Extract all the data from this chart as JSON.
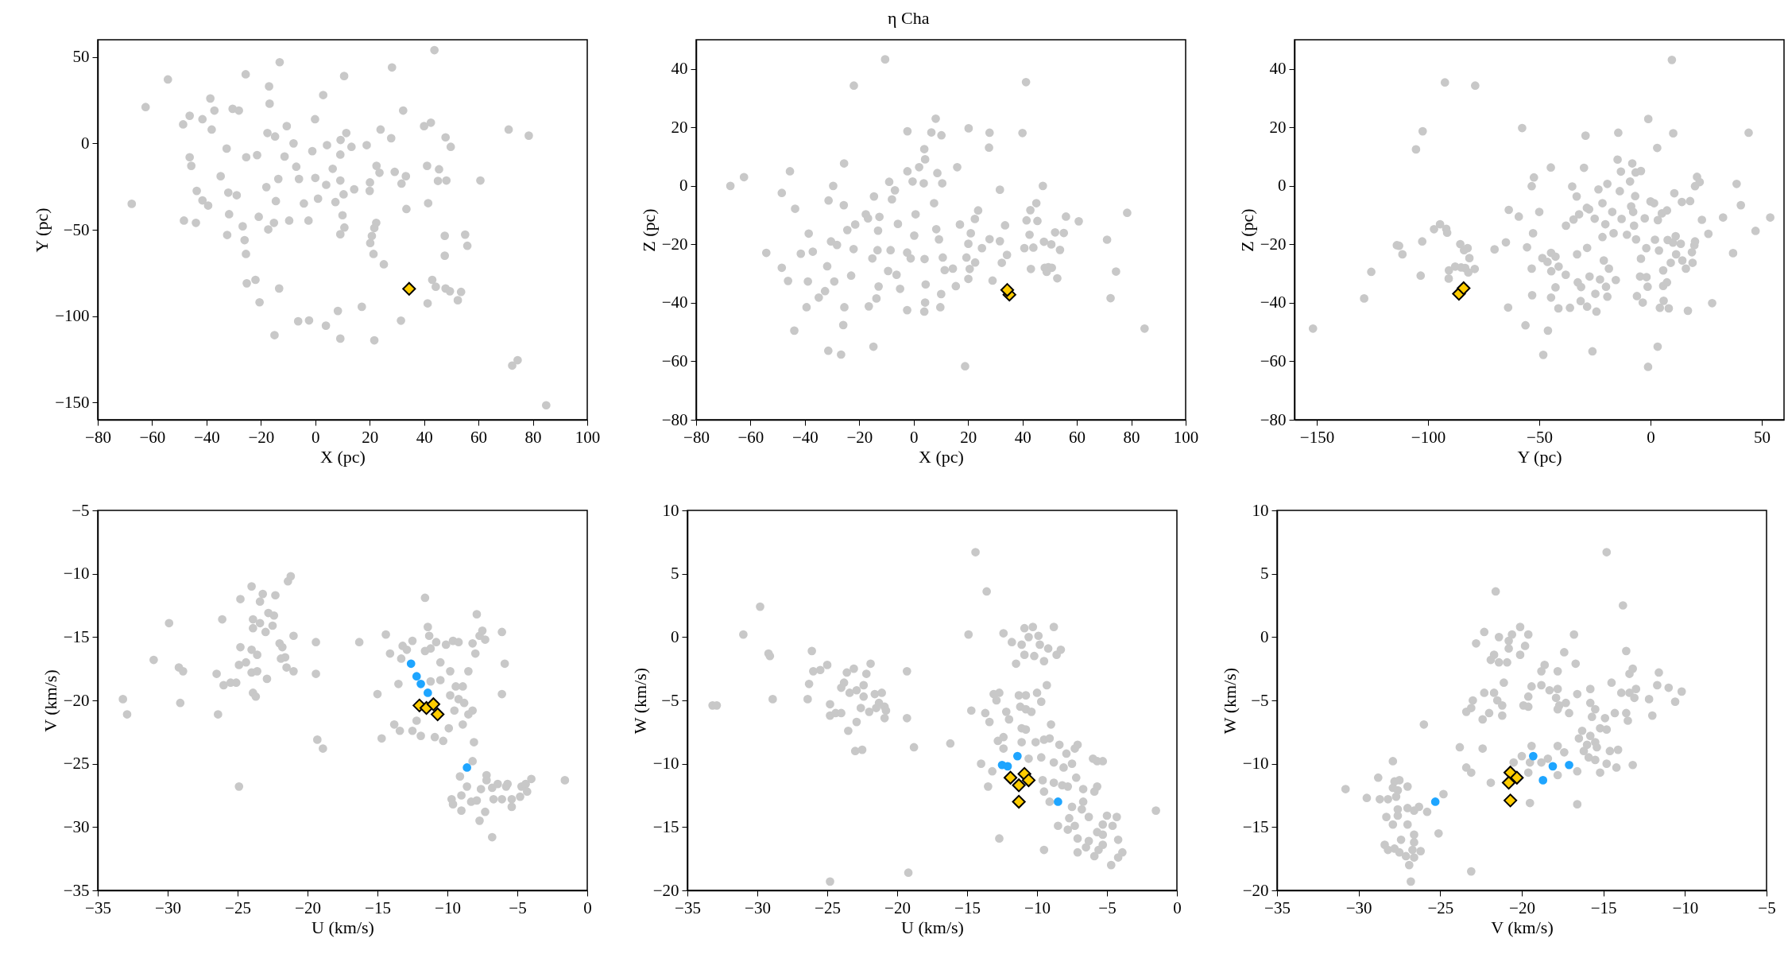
{
  "chart_data": [
    {
      "type": "scatter",
      "marker": "circle",
      "xlabel": "X (pc)",
      "ylabel": "Y (pc)",
      "xlim": [
        -80,
        100
      ],
      "ylim": [
        -160,
        60
      ],
      "xticks": [
        -80,
        -60,
        -40,
        -20,
        0,
        20,
        40,
        60,
        80,
        100
      ],
      "yticks": [
        -150,
        -100,
        -50,
        0,
        50
      ],
      "series": [
        {
          "color": "#c8c8c8",
          "x": [
            -67.5,
            -62.4,
            -54.2,
            -48.6,
            -46.2,
            -41.5,
            -38.6,
            -38.1,
            -37.1,
            -30.4,
            -28.1,
            -25.6,
            -16.8,
            -17,
            -13.1,
            2.9,
            10.6,
            28.2,
            43.8,
            32.3,
            42.5,
            71.1,
            78.5,
            49.8,
            47.9,
            40,
            24,
            27.9,
            18.9,
            13.3,
            9.3,
            11.4,
            4.3,
            -1.1,
            -0.1,
            -8,
            -10.5,
            -17.6,
            -14.8,
            -32.6,
            -46.2,
            -45.6,
            -34.8,
            -43.6,
            -41.5,
            -39.4,
            -32,
            -28.9,
            -31.7,
            -48.3,
            -43.9,
            -26.7,
            -32.4,
            -26,
            -25.5,
            -25.2,
            -22,
            -13.3,
            -20.5,
            -15,
            -6.3,
            -2.3,
            3.9,
            9.2,
            8.3,
            17.1,
            21.7,
            31.5,
            41.3,
            43,
            44.3,
            47.9,
            49.5,
            52.4,
            53.6,
            47.6,
            47.6,
            55.1,
            55.9,
            25.2,
            21.4,
            20.2,
            20.8,
            21.7,
            22.4,
            10,
            10.7,
            9.2,
            -2.5,
            -9.6,
            -15.2,
            -17.3,
            -20.8,
            1,
            -6,
            -7,
            -13.6,
            -18,
            -14.5,
            -4.2,
            7.4,
            10.4,
            14.3,
            20,
            20.1,
            22.5,
            23.6,
            29.2,
            31.7,
            33.3,
            33.5,
            41.5,
            41.1,
            45.5,
            45.1,
            48.2,
            60.7,
            72.4,
            74.4,
            84.9,
            6.4,
            9.2,
            9.2,
            0,
            4,
            -11.3,
            -21.4,
            -25.4
          ],
          "values": [
            -35,
            21,
            37,
            11,
            16,
            14,
            26,
            8,
            19,
            20,
            19,
            40,
            23,
            33,
            47,
            28,
            39,
            44,
            54,
            19,
            12,
            8,
            4.5,
            -2,
            3.5,
            10,
            8,
            3,
            -1,
            -2,
            2,
            6,
            -1,
            -4.5,
            14,
            0,
            10,
            6,
            4,
            -3,
            -8,
            -13,
            -19,
            -27.5,
            -33,
            -36,
            -28.5,
            -30,
            -41,
            -44.7,
            -46,
            -48,
            -53,
            -56,
            -64,
            -81,
            -79,
            -84,
            -92,
            -111,
            -103,
            -102.5,
            -105.5,
            -113,
            -97,
            -94.6,
            -114,
            -102.6,
            -92.6,
            -79,
            -83,
            -84,
            -85.6,
            -90.8,
            -86,
            -65,
            -53.5,
            -52.8,
            -59.3,
            -70,
            -64,
            -57.7,
            -53.6,
            -49,
            -46,
            -41.6,
            -48.7,
            -52.6,
            -44.7,
            -44.7,
            -46,
            -49.8,
            -42.5,
            -32,
            -20.6,
            -13.5,
            -20.6,
            -25.3,
            -33.4,
            -34.8,
            -34,
            -29.5,
            -26.6,
            -27.5,
            -22.6,
            -13,
            -17,
            -16.5,
            -23.3,
            -19,
            -38,
            -34.6,
            -13,
            -15,
            -21.7,
            -21.5,
            -21.5,
            -128.6,
            -125.5,
            -151.6,
            -14.7,
            -21.5,
            -6.5,
            -20,
            -24,
            -7.6,
            -6.8,
            -8
          ]
        },
        {
          "color": "#ffcc00",
          "marker": "diamond",
          "x": [
            34.5
          ],
          "values": [
            -84.2
          ]
        }
      ]
    },
    {
      "type": "scatter",
      "marker": "circle",
      "title": "η Cha",
      "xlabel": "X (pc)",
      "ylabel": "Z (pc)",
      "xlim": [
        -80,
        100
      ],
      "ylim": [
        -80,
        50
      ],
      "xticks": [
        -80,
        -60,
        -40,
        -20,
        0,
        20,
        40,
        60,
        80,
        100
      ],
      "yticks": [
        -80,
        -60,
        -40,
        -20,
        0,
        20,
        40
      ],
      "series": [
        {
          "color": "#c8c8c8",
          "x": [
            -67.4,
            -62.4,
            -54.2,
            -48.5,
            -45.5,
            -43.6,
            -48.5,
            -46.2,
            -43.9,
            -41.5,
            -38.9,
            -38.6,
            -37.1,
            -39.4,
            -34.9,
            -32.6,
            -31.8,
            -30.4,
            -29.6,
            -31.3,
            -29.2,
            -28.2,
            -25.6,
            -25.7,
            -25.5,
            -25.9,
            -31.4,
            -26.7,
            -23,
            -22.1,
            -24.4,
            -21.5,
            -17.6,
            -16.8,
            -14.6,
            -12.6,
            -13.1,
            -13.3,
            -15.2,
            -14.8,
            -16.5,
            -12.9,
            -13.7,
            -9,
            -8,
            -6.9,
            -5.8,
            -6.3,
            -9.4,
            -8.5,
            -5,
            -2.4,
            -1.1,
            0.7,
            -2.3,
            -0.4,
            -2.3,
            2,
            3.7,
            4.2,
            3.9,
            6.5,
            10.2,
            8.1,
            8.7,
            10.5,
            7.5,
            8.3,
            9.3,
            0.2,
            4,
            4.4,
            4.2,
            3.9,
            -2.4,
            9.8,
            10.1,
            10.7,
            11.4,
            14.4,
            15.5,
            16,
            17,
            20.2,
            21,
            20.1,
            19.4,
            20.6,
            20.1,
            18.9,
            22.6,
            23.7,
            22.5,
            25.1,
            27.9,
            27.7,
            27.9,
            31.7,
            31.7,
            32.4,
            34.3,
            33.6,
            29,
            40,
            41.3,
            47.5,
            45.1,
            42.9,
            41.5,
            45.5,
            42.6,
            40.7,
            44,
            47.9,
            50.6,
            52,
            55.2,
            56,
            60.7,
            53.8,
            43.1,
            48.2,
            49.5,
            50.8,
            48.9,
            52.8,
            71.1,
            74.4,
            72.4,
            78.5,
            84.9,
            -10.5,
            -22
          ],
          "values": [
            0,
            3,
            -22.9,
            -2.4,
            5,
            -7.8,
            -28,
            -32.5,
            -49.5,
            -23.2,
            -32.7,
            -16.3,
            -22.5,
            -41.5,
            -38.2,
            -36,
            -27.5,
            -19,
            0,
            -5,
            -32.7,
            -20.2,
            7.7,
            -6.6,
            -41.5,
            -47.6,
            -56.4,
            -57.7,
            -30.7,
            -21.6,
            -15.1,
            -13.2,
            -9.7,
            -11.1,
            -3.6,
            -10.6,
            -15.3,
            -22,
            -24.8,
            -55,
            -41.2,
            -34.4,
            -38.5,
            1.4,
            -4.6,
            -1.5,
            -13,
            -30.4,
            -29.1,
            -22,
            -35.2,
            -22.8,
            -24.8,
            -9.7,
            5,
            1.5,
            18.7,
            6.4,
            0.9,
            9.1,
            12.6,
            18.3,
            17.3,
            23,
            4.4,
            0.9,
            -5.9,
            -14.8,
            -18.3,
            -17,
            -25,
            -33.7,
            -39.9,
            -43,
            -42.5,
            -41.5,
            -37,
            -24.5,
            -28.8,
            -28.3,
            -34.3,
            6.4,
            -13.2,
            19.7,
            -16.2,
            -19.8,
            -24.5,
            -28.4,
            -31.8,
            -61.7,
            -26.2,
            -8.4,
            -11.3,
            -21.3,
            18.2,
            13.1,
            -18.2,
            -1.3,
            -18.9,
            -26.3,
            -23.6,
            -13.5,
            -32.4,
            18.1,
            35.5,
            0,
            -5.9,
            -8.3,
            -11.8,
            -12,
            -16.7,
            -21.3,
            -21.1,
            -19.1,
            -20,
            -15.9,
            -16.1,
            -10.5,
            -12.1,
            -21.9,
            -28.4,
            -28,
            -27.8,
            -28,
            -29.4,
            -31.6,
            -18.4,
            -29.3,
            -38.4,
            -9.2,
            -48.8,
            43.3,
            34.3
          ]
        },
        {
          "color": "#ffcc00",
          "marker": "diamond",
          "x": [
            35.2,
            34.4
          ],
          "values": [
            -37.2,
            -35.6
          ]
        }
      ]
    },
    {
      "type": "scatter",
      "marker": "circle",
      "xlabel": "Y (pc)",
      "ylabel": "Z (pc)",
      "xlim": [
        -160,
        60
      ],
      "ylim": [
        -80,
        50
      ],
      "xticks": [
        -150,
        -100,
        -50,
        0,
        50
      ],
      "yticks": [
        -80,
        -60,
        -40,
        -20,
        0,
        20,
        40
      ],
      "series": [
        {
          "color": "#c8c8c8",
          "x": [
            -151.7,
            -128.7,
            -125.5,
            -114,
            -113,
            -111.5,
            -105.4,
            -102.4,
            -103.3,
            -102.6,
            -97.3,
            -94.6,
            -91.8,
            -91.4,
            -92.4,
            -78.8,
            -90.7,
            -90.6,
            -87.8,
            -85.1,
            -83.3,
            -85.5,
            -83.8,
            -82.2,
            -81.4,
            -79,
            -81.9,
            -70.1,
            -65,
            -64,
            -63.7,
            -59.2,
            -57.7,
            -55.5,
            -53.4,
            -53.2,
            -56.2,
            -48.2,
            -46.1,
            -50,
            -52.8,
            -53.4,
            -52.4,
            -48.6,
            -46.3,
            -44.7,
            -42.7,
            -41.3,
            -44.6,
            -44.8,
            -44.7,
            -42.7,
            -41.4,
            -38.1,
            -38,
            -36.2,
            -35.2,
            -34.6,
            -33.2,
            -32.1,
            -29.2,
            -29.9,
            -28.6,
            -27.6,
            -28.5,
            -33,
            -32.7,
            -31.2,
            -31.4,
            -28.5,
            -27.4,
            -26.1,
            -24.3,
            -24.8,
            -25.1,
            -23.4,
            -21.6,
            -22.7,
            -21,
            -21.6,
            -20.3,
            -19.4,
            -18.7,
            -20,
            -19.4,
            -17.2,
            -15.6,
            -16.6,
            -14.5,
            -14.8,
            -13.8,
            -13.3,
            -13,
            -10.6,
            -9.2,
            -8.2,
            -6.7,
            -6.9,
            -8.7,
            -7.8,
            -7.4,
            -6.5,
            -4.3,
            -2.6,
            -1.9,
            -4.3,
            -4.7,
            -1.8,
            -3.5,
            -6.1,
            -1.3,
            -1,
            3.2,
            -1.1,
            0,
            1.6,
            3,
            3.3,
            5.1,
            7.4,
            2,
            3.8,
            5.7,
            5.7,
            7.4,
            5.9,
            4.2,
            8.2,
            9.6,
            10.2,
            10.7,
            14.1,
            17.8,
            7.7,
            10.1,
            11.3,
            13.6,
            11.5,
            9.1,
            14.3,
            15.9,
            16.8,
            18.9,
            18.6,
            19.7,
            20,
            20,
            20.9,
            22.1,
            23.1,
            26,
            27.7,
            32.6,
            37.1,
            38.7,
            40.6,
            44.1,
            47.2,
            53.8
          ],
          "values": [
            -48.8,
            -38.5,
            -29.4,
            -20.3,
            -20.5,
            -23.4,
            12.5,
            18.7,
            -30.7,
            -19,
            -14.8,
            -13.1,
            -14.7,
            -16,
            35.4,
            34.3,
            -31.7,
            -28.9,
            -27.6,
            -27.9,
            -28.1,
            -19.9,
            -22,
            -21.3,
            -24.7,
            -28.4,
            -29.6,
            -21.7,
            -19.3,
            -41.6,
            -8.2,
            -10.5,
            19.8,
            -21,
            -28.3,
            -37.4,
            -47.7,
            -57.8,
            -49.5,
            -8.9,
            -16.2,
            -0.1,
            2.9,
            -24.7,
            -26,
            -22.9,
            -24.2,
            -27.6,
            -29.2,
            6.3,
            -38.2,
            -34.7,
            -41.9,
            -30.4,
            -13.6,
            -41.7,
            -0.2,
            -11.5,
            -3.6,
            -9.7,
            17.2,
            6.2,
            -7.5,
            -8,
            -21.2,
            -23.4,
            -33,
            -34.6,
            -39.4,
            -41.3,
            -31,
            -56.6,
            -43,
            -36.9,
            -11.2,
            -1.2,
            -5.9,
            -32,
            -25.5,
            -17.5,
            -13.1,
            0.7,
            -28.3,
            -34.5,
            -37.9,
            -8.9,
            -32.2,
            -16.2,
            18.2,
            9,
            -1.8,
            4.9,
            -11.3,
            -16.7,
            1.5,
            7.7,
            4.6,
            -3.5,
            -7,
            -8.9,
            -13.6,
            -18.3,
            5.1,
            -11.1,
            -21.3,
            -24.9,
            -31,
            -31.2,
            -39.9,
            -37.7,
            -34.5,
            22.9,
            -55,
            -61.9,
            -5.3,
            -5.9,
            13,
            -11.7,
            -9.4,
            -8.4,
            -18.4,
            -22.1,
            -28.9,
            -34.2,
            -33,
            -39.3,
            -41.7,
            -41.9,
            43.1,
            18,
            -2.5,
            -5.5,
            -5.2,
            -18.5,
            -19.4,
            -17.2,
            -19.8,
            -23.4,
            -26.3,
            -25.5,
            -28.3,
            -42.7,
            -26.3,
            -22.7,
            -20.3,
            -19,
            -0.1,
            3.1,
            1.3,
            -11.6,
            -16.4,
            -40.1,
            -10.8,
            -23,
            0.7,
            -6.6,
            18.2,
            -15.4,
            -10.8
          ]
        },
        {
          "color": "#ffcc00",
          "marker": "diamond",
          "x": [
            -86.1,
            -84
          ],
          "values": [
            -36.9,
            -35
          ]
        }
      ]
    },
    {
      "type": "scatter",
      "marker": "circle",
      "xlabel": "U (km/s)",
      "ylabel": "V (km/s)",
      "xlim": [
        -35,
        0
      ],
      "ylim": [
        -35,
        -5
      ],
      "xticks": [
        -35,
        -30,
        -25,
        -20,
        -15,
        -10,
        -5,
        0
      ],
      "yticks": [
        -35,
        -30,
        -25,
        -20,
        -15,
        -10,
        -5
      ],
      "series": [
        {
          "color": "#c8c8c8",
          "x": [
            -33.2,
            -32.9,
            -31,
            -29.9,
            -29.2,
            -28.9,
            -29.1,
            -26.5,
            -26.4,
            -26.1,
            -26,
            -25.5,
            -25.1,
            -24.9,
            -24.8,
            -24.8,
            -24.9,
            -24.4,
            -24,
            -24,
            -24,
            -23.6,
            -23.6,
            -23.9,
            -23.9,
            -23.4,
            -23.4,
            -23.2,
            -23,
            -22.9,
            -22.8,
            -22.5,
            -22.3,
            -22.4,
            -22,
            -21.8,
            -21.6,
            -21.9,
            -21.5,
            -21,
            -21,
            -21.4,
            -21.2,
            -23.9,
            -23.7,
            -19.4,
            -19.4,
            -19.3,
            -18.9,
            -16.3,
            -15,
            -14.7,
            -14.4,
            -14.1,
            -13.8,
            -13.5,
            -13.4,
            -13.2,
            -13.3,
            -12.9,
            -12.5,
            -12.5,
            -12.2,
            -11.9,
            -11.6,
            -11.4,
            -11.3,
            -11.6,
            -11.2,
            -10.8,
            -10.5,
            -10.5,
            -11.2,
            -10.9,
            -10.3,
            -10.1,
            -9.8,
            -9.8,
            -9.5,
            -9.9,
            -9.6,
            -9.2,
            -9.4,
            -8.9,
            -9.2,
            -8.9,
            -8.8,
            -8.5,
            -8.2,
            -8,
            -8.2,
            -8.5,
            -8.1,
            -7.9,
            -7.7,
            -7.5,
            -7.3,
            -6.1,
            -5.9,
            -6.1,
            -8.2,
            -9.1,
            -8.6,
            -9,
            -9.7,
            -9.6,
            -9,
            -8.3,
            -7.9,
            -7.7,
            -7.6,
            -7.3,
            -7.2,
            -7.2,
            -6.8,
            -6.8,
            -6.7,
            -6.4,
            -6.1,
            -5.8,
            -5.7,
            -5.4,
            -5.4,
            -4.8,
            -4.7,
            -4.4,
            -4.3,
            -4,
            -1.6
          ],
          "values": [
            -19.9,
            -21.1,
            -16.8,
            -13.9,
            -17.4,
            -17.7,
            -20.2,
            -17.9,
            -21.1,
            -13.6,
            -18.8,
            -18.6,
            -18.6,
            -26.8,
            -12,
            -15.8,
            -17.2,
            -17,
            -11,
            -16,
            -17.8,
            -17.7,
            -16.4,
            -14.3,
            -13.6,
            -13.9,
            -12.2,
            -11.6,
            -14.6,
            -18.3,
            -13.1,
            -14.1,
            -11.7,
            -13.3,
            -15.5,
            -15.8,
            -16.6,
            -16.7,
            -17.4,
            -17.7,
            -14.9,
            -10.6,
            -10.2,
            -19.4,
            -19.7,
            -15.4,
            -17.9,
            -23.1,
            -23.8,
            -15.4,
            -19.5,
            -23,
            -14.8,
            -16.3,
            -21.9,
            -18.7,
            -22.4,
            -15.7,
            -16.7,
            -16,
            -15.3,
            -22.4,
            -21.6,
            -22.8,
            -11.9,
            -14.2,
            -14.9,
            -16.1,
            -15.9,
            -15.4,
            -17,
            -18.4,
            -18.5,
            -22.9,
            -23.2,
            -15.6,
            -17.7,
            -19.6,
            -20.8,
            -22.2,
            -15.3,
            -15.4,
            -18.9,
            -18.9,
            -19.9,
            -21.9,
            -20.2,
            -17.7,
            -15.5,
            -16.3,
            -20.8,
            -21.1,
            -23.3,
            -13.2,
            -14.9,
            -14.5,
            -15.2,
            -14.6,
            -17.1,
            -19.5,
            -24.8,
            -26,
            -26.8,
            -27.5,
            -27.8,
            -28.2,
            -28.7,
            -28,
            -27.9,
            -29.5,
            -27,
            -28.8,
            -25.9,
            -26.3,
            -26.9,
            -30.8,
            -27.8,
            -26.6,
            -27.8,
            -26.8,
            -26.6,
            -28.4,
            -27.8,
            -27.6,
            -26.8,
            -26.6,
            -27.2,
            -26.2,
            -26.3
          ]
        },
        {
          "color": "#1ea5ff",
          "x": [
            -12.6,
            -12.2,
            -11.9,
            -11.4,
            -8.6
          ],
          "values": [
            -17.1,
            -18.1,
            -18.7,
            -19.4,
            -25.3
          ]
        },
        {
          "color": "#ffcc00",
          "marker": "diamond",
          "x": [
            -12,
            -11.5,
            -11,
            -10.7
          ],
          "values": [
            -20.4,
            -20.6,
            -20.3,
            -21.1
          ]
        }
      ]
    },
    {
      "type": "scatter",
      "marker": "circle",
      "xlabel": "U (km/s)",
      "ylabel": "W (km/s)",
      "xlim": [
        -35,
        0
      ],
      "ylim": [
        -20,
        10
      ],
      "xticks": [
        -35,
        -30,
        -25,
        -20,
        -15,
        -10,
        -5,
        0
      ],
      "yticks": [
        -20,
        -15,
        -10,
        -5,
        0,
        5,
        10
      ],
      "series": [
        {
          "color": "#c8c8c8",
          "x": [
            -33.2,
            -32.9,
            -31,
            -29.8,
            -29.2,
            -29.1,
            -28.9,
            -26.4,
            -26.3,
            -26.1,
            -26,
            -25.5,
            -25,
            -24.8,
            -24.8,
            -24.4,
            -24,
            -23.8,
            -24,
            -23.6,
            -23.5,
            -23.4,
            -23.1,
            -22.9,
            -22.9,
            -23,
            -22.5,
            -22.6,
            -22.4,
            -22.4,
            -22.2,
            -21.9,
            -22,
            -21.6,
            -21.5,
            -21.3,
            -21.1,
            -20.9,
            -20.8,
            -20.9,
            -19.3,
            -19.3,
            -18.8,
            -19.2,
            -24.8,
            -16.2,
            -14.9,
            -14.4,
            -13.6,
            -14.7,
            -14,
            -13.5,
            -13.2,
            -13.7,
            -13.4,
            -13.1,
            -12.9,
            -12.7,
            -12.8,
            -12.4,
            -12.2,
            -12,
            -12.4,
            -12.7,
            -12.4,
            -11.8,
            -11.5,
            -10.9,
            -11.1,
            -10.9,
            -10.6,
            -10.3,
            -9.9,
            -10.2,
            -9.8,
            -9.5,
            -9.2,
            -8.8,
            -8.6,
            -8.3,
            -11.3,
            -10.8,
            -11.2,
            -10.8,
            -10.4,
            -10,
            -9.7,
            -9.3,
            -11.1,
            -10.8,
            -11.1,
            -10.6,
            -10.1,
            -9.7,
            -9.5,
            -9.1,
            -9,
            -9.6,
            -9.5,
            -9.5,
            -9.1,
            -8.8,
            -8.8,
            -8.4,
            -8.2,
            -8.1,
            -7.9,
            -7.8,
            -7.5,
            -7.5,
            -7.3,
            -7.2,
            -7.1,
            -7.7,
            -8.5,
            -7.8,
            -7.3,
            -7.1,
            -7.1,
            -6.7,
            -6.7,
            -6.8,
            -6.5,
            -6.3,
            -6.3,
            -6,
            -5.7,
            -5.3,
            -5.7,
            -5.9,
            -5.9,
            -5.6,
            -5.3,
            -5.3,
            -5.7,
            -5.3,
            -5,
            -4.6,
            -4.7,
            -4.3,
            -4.2,
            -4.2,
            -3.9,
            -1.5
          ],
          "values": [
            -5.4,
            -5.4,
            0.2,
            2.4,
            -1.3,
            -1.5,
            -4.9,
            -4.9,
            -3.7,
            -1.1,
            -2.7,
            -2.6,
            -2.2,
            -5.3,
            -6.2,
            -6,
            -4,
            -3.6,
            -6,
            -2.8,
            -7.4,
            -4.4,
            -2.5,
            -4.2,
            -6.7,
            -9,
            -8.9,
            -5.6,
            -4.7,
            -3.8,
            -2.9,
            -2.1,
            -5.9,
            -4.5,
            -5.6,
            -5.2,
            -4.4,
            -5.5,
            -5.8,
            -6.4,
            -2.7,
            -6.4,
            -8.7,
            -18.6,
            -19.3,
            -8.4,
            0.2,
            6.7,
            3.6,
            -5.8,
            -10,
            -11.8,
            -10.6,
            -6,
            -6.7,
            -4.5,
            -5,
            -4.4,
            -8.2,
            -7.9,
            -5.9,
            -6.5,
            -8.8,
            -15.9,
            0.3,
            -0.4,
            -2.1,
            0.7,
            -0.6,
            -1.4,
            0,
            0.8,
            0.1,
            -1.5,
            -0.6,
            -1.9,
            -0.9,
            0.8,
            -1.4,
            -1,
            -4.6,
            -4.6,
            -5.5,
            -5.7,
            -5.9,
            -4.4,
            -5.1,
            -3.8,
            -7.2,
            -7.3,
            -8.3,
            -9.6,
            -8.3,
            -9.5,
            -8.1,
            -8,
            -6.9,
            -11.3,
            -12.2,
            -16.8,
            -13,
            -9.9,
            -11.5,
            -8.5,
            -11.7,
            -10.3,
            -9.2,
            -11.8,
            -10,
            -13.4,
            -8.8,
            -11.1,
            -8.5,
            -14.3,
            -14.9,
            -15.2,
            -14.9,
            -15.9,
            -17,
            -12,
            -13,
            -13.6,
            -16.6,
            -16.1,
            -14.2,
            -9.6,
            -9.8,
            -9.8,
            -11.8,
            -12.2,
            -17.3,
            -16.8,
            -16.4,
            -14.8,
            -15.4,
            -15.6,
            -14.1,
            -14.9,
            -18,
            -14.2,
            -16,
            -17.4,
            -17,
            -13.7
          ]
        },
        {
          "color": "#1ea5ff",
          "x": [
            -12.5,
            -12.1,
            -11.4,
            -8.5
          ],
          "values": [
            -10.1,
            -10.2,
            -9.4,
            -13
          ]
        },
        {
          "color": "#ffcc00",
          "marker": "diamond",
          "x": [
            -11.9,
            -11.3,
            -10.9,
            -10.6,
            -11.3
          ],
          "values": [
            -11.1,
            -11.7,
            -10.8,
            -11.3,
            -13
          ]
        }
      ]
    },
    {
      "type": "scatter",
      "marker": "circle",
      "xlabel": "V (km/s)",
      "ylabel": "W (km/s)",
      "xlim": [
        -35,
        -5
      ],
      "ylim": [
        -20,
        10
      ],
      "xticks": [
        -35,
        -30,
        -25,
        -20,
        -15,
        -10,
        -5
      ],
      "yticks": [
        -20,
        -15,
        -10,
        -5,
        0,
        5,
        10
      ],
      "series": [
        {
          "color": "#c8c8c8",
          "x": [
            -30.8,
            -29.5,
            -28.8,
            -28.7,
            -27.9,
            -28.2,
            -27.9,
            -27.8,
            -27.5,
            -27,
            -27.6,
            -27.7,
            -27,
            -27.6,
            -28.3,
            -27.9,
            -27.6,
            -27,
            -26.3,
            -26.6,
            -25.8,
            -27.4,
            -26.6,
            -26.6,
            -28.4,
            -28.2,
            -27.8,
            -27.5,
            -27.1,
            -26.6,
            -26.7,
            -26.2,
            -26.9,
            -26.8,
            -25.1,
            -24.8,
            -26,
            -23.8,
            -23.4,
            -23.1,
            -23.1,
            -22.4,
            -21.9,
            -23.4,
            -23.1,
            -23,
            -22.4,
            -22.3,
            -22,
            -21.7,
            -21.5,
            -21.2,
            -21.2,
            -21.1,
            -21.7,
            -21.9,
            -21.4,
            -20.9,
            -20.8,
            -20.8,
            -20.6,
            -21.4,
            -22.3,
            -22.8,
            -21.6,
            -20.1,
            -19.6,
            -19.8,
            -20.1,
            -19.9,
            -19.6,
            -19.6,
            -19.4,
            -19.4,
            -19.5,
            -19.6,
            -20,
            -20.5,
            -19.5,
            -18.8,
            -18.6,
            -18.8,
            -18.3,
            -18.8,
            -18.4,
            -17.8,
            -17.8,
            -17.9,
            -17.7,
            -17.8,
            -17.4,
            -17.3,
            -17.1,
            -17.8,
            -17.4,
            -17.8,
            -16.7,
            -16.6,
            -16.8,
            -16.6,
            -16.6,
            -16.3,
            -16.5,
            -16.2,
            -16,
            -15.8,
            -15.9,
            -15.8,
            -15.8,
            -15.7,
            -15.5,
            -15.5,
            -15.4,
            -15.5,
            -15.2,
            -14.9,
            -14.8,
            -14.8,
            -15.2,
            -14.6,
            -14.5,
            -14.3,
            -14.1,
            -14.2,
            -13.9,
            -13.6,
            -13.8,
            -14.8,
            -13.4,
            -13.2,
            -13.4,
            -13.1,
            -13,
            -13.6,
            -13.5,
            -13.2,
            -12.2,
            -12,
            -11.7,
            -11.6,
            -11,
            -10.6,
            -10.2
          ],
          "values": [
            -12,
            -12.7,
            -11.1,
            -12.8,
            -9.8,
            -12.8,
            -11.9,
            -11.4,
            -11.3,
            -11.8,
            -12.1,
            -12.6,
            -13.5,
            -13.6,
            -14.2,
            -14.8,
            -14.1,
            -14.8,
            -13.4,
            -13.7,
            -13.8,
            -16,
            -15.6,
            -16.2,
            -16.4,
            -16.8,
            -16.7,
            -17,
            -17.3,
            -17.4,
            -16.8,
            -16.9,
            -18,
            -19.3,
            -15.5,
            -12.4,
            -6.9,
            -8.7,
            -10.3,
            -10.7,
            -18.5,
            -8.8,
            -11.5,
            -5.9,
            -5.6,
            -5,
            -6.5,
            -4.4,
            -6,
            -4.4,
            -5,
            -5.4,
            -6.2,
            -3.6,
            -1.4,
            -1.8,
            -2,
            -2,
            -0.9,
            -0.3,
            0.2,
            0,
            0.4,
            -0.5,
            3.6,
            0.8,
            0.2,
            -0.7,
            -1.4,
            -5.4,
            -4.7,
            -5.5,
            -3.9,
            -8.6,
            -9.9,
            -10.7,
            -9.4,
            -9.9,
            -13.1,
            -2.7,
            -2.2,
            -3.8,
            -4.2,
            -9.9,
            -9.6,
            -2.7,
            -4.1,
            -4.8,
            -5.4,
            -5.7,
            -1.2,
            -5.2,
            -6,
            -8.6,
            -9.1,
            -10.9,
            -2.1,
            -4.5,
            0.2,
            -10.6,
            -13.2,
            -7.4,
            -8,
            -9,
            -8.5,
            -7.8,
            -9.5,
            -4.1,
            -5.2,
            -6.3,
            -5.7,
            -8.3,
            -8.7,
            -9.7,
            -7.2,
            -6.4,
            -7.3,
            -10,
            -10.7,
            -9,
            -3.6,
            -6,
            -8.9,
            -10.3,
            -4.4,
            -1.1,
            2.5,
            6.7,
            -2.9,
            -2.5,
            -4.4,
            -4.8,
            -4.1,
            -6,
            -6.6,
            -10.1,
            -4.9,
            -6.2,
            -3.8,
            -2.8,
            -4,
            -5.1,
            -4.3
          ]
        },
        {
          "color": "#1ea5ff",
          "x": [
            -25.3,
            -19.3,
            -18.1,
            -18.7,
            -17.1
          ],
          "values": [
            -13,
            -9.4,
            -10.2,
            -11.3,
            -10.1
          ]
        },
        {
          "color": "#ffcc00",
          "marker": "diamond",
          "x": [
            -20.7,
            -20.3,
            -20.8,
            -20.7
          ],
          "values": [
            -10.7,
            -11.1,
            -11.5,
            -12.9
          ]
        }
      ]
    }
  ]
}
